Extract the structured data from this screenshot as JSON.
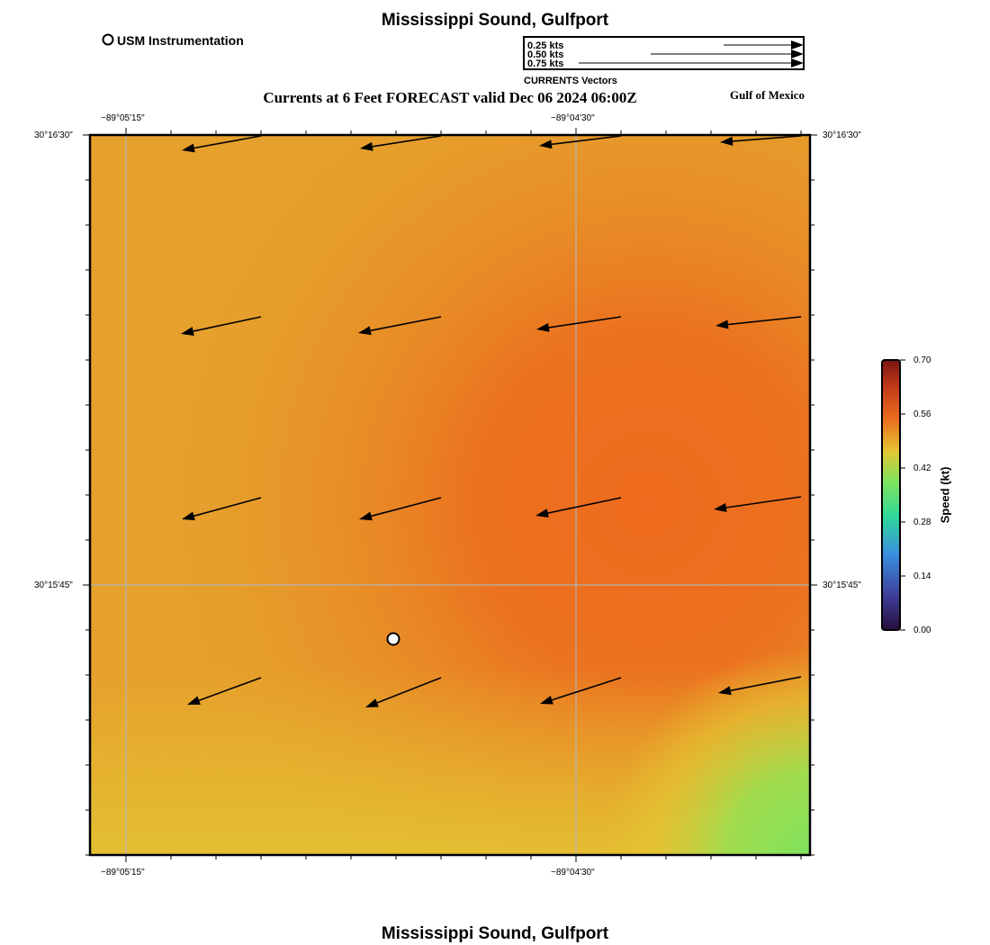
{
  "page": {
    "title_top": "Mississippi Sound, Gulfport",
    "title_bottom": "Mississippi Sound, Gulfport",
    "subtitle": "Currents at 6 Feet FORECAST valid Dec 06 2024 06:00Z",
    "region_label": "Gulf of Mexico"
  },
  "marker_legend": {
    "label": "USM Instrumentation"
  },
  "vector_legend": {
    "entries": [
      "0.25 kts",
      "0.50 kts",
      "0.75 kts"
    ],
    "caption": "CURRENTS Vectors"
  },
  "map": {
    "lon_ticks": [
      "−89°05'15\"",
      "−89°04'30\""
    ],
    "lat_ticks": [
      "30°16'30\"",
      "30°15'45\""
    ],
    "field_colors": {
      "base": "#e6a02c",
      "hot": "#ec6d1e",
      "yellow": "#e3c733",
      "green": "#82e35a",
      "grid": "#b4b4b4"
    }
  },
  "colorbar": {
    "label": "Speed (kt)",
    "ticks": [
      "0.70",
      "0.56",
      "0.42",
      "0.28",
      "0.14",
      "0.00"
    ]
  }
}
